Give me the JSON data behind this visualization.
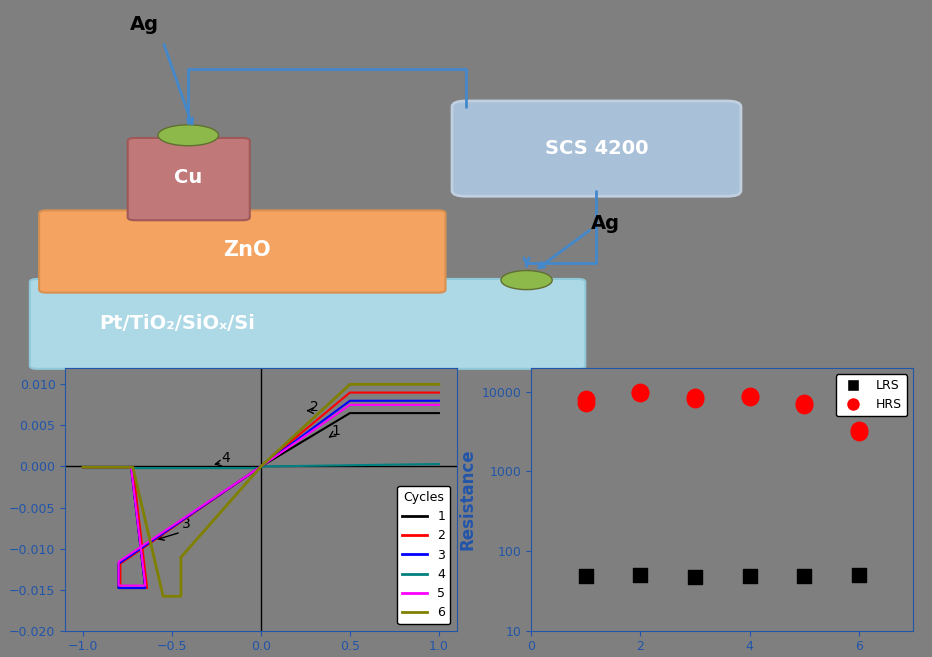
{
  "bg_color": "#7f7f7f",
  "diagram": {
    "pt_color": "#add8e6",
    "zno_color": "#f4a460",
    "cu_color": "#c07878",
    "scs_color": "#a8c0d8",
    "ag_color": "#8db84a",
    "pt_label": "Pt/TiO₂/SiOₓ/Si",
    "zno_label": "ZnO",
    "cu_label": "Cu",
    "scs_label": "SCS 4200"
  },
  "iv_colors": [
    "#000000",
    "#ff0000",
    "#0000ff",
    "#008080",
    "#ff00ff",
    "#808000"
  ],
  "resistance_data": {
    "cycles": [
      1,
      2,
      3,
      4,
      5,
      6
    ],
    "lrs": [
      48,
      50,
      47,
      49,
      48,
      50
    ],
    "hrs_low": [
      7200,
      9600,
      8100,
      8600,
      6800,
      3100
    ],
    "hrs_high": [
      8100,
      9900,
      8600,
      8900,
      7200,
      3300
    ]
  },
  "label_color": "#2255aa",
  "tick_color": "#2255aa"
}
